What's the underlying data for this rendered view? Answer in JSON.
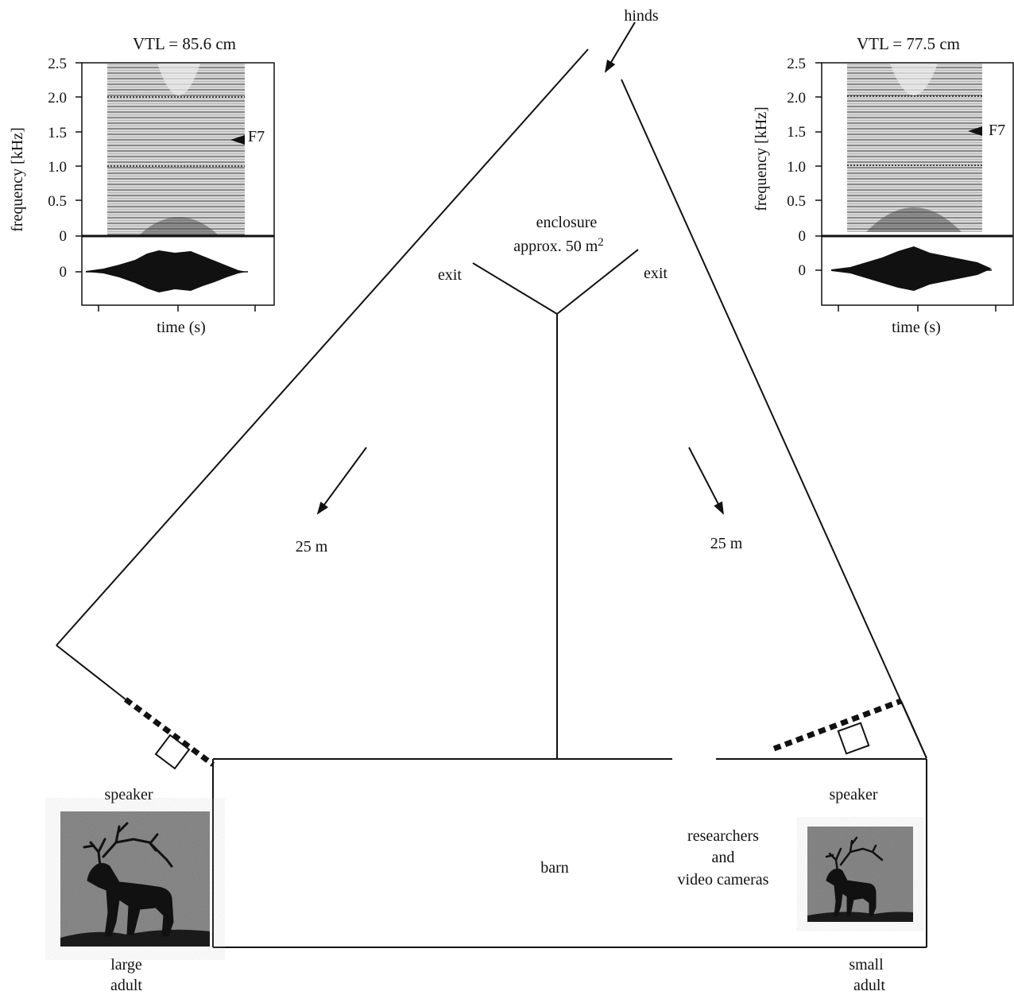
{
  "arrival_label": "hinds",
  "enclosure": {
    "line1": "enclosure",
    "line2": "approx. 50 m",
    "sup": "2"
  },
  "exit_left": "exit",
  "exit_right": "exit",
  "distance_left": "25 m",
  "distance_right": "25 m",
  "barn_label": "barn",
  "researchers": {
    "line1": "researchers",
    "line2": "and",
    "line3": "video cameras"
  },
  "left_speaker": {
    "label": "speaker",
    "caption_line1": "large",
    "caption_line2": "adult"
  },
  "right_speaker": {
    "label": "speaker",
    "caption_line1": "small",
    "caption_line2": "adult"
  },
  "spectrogram_left": {
    "title": "VTL = 85.6 cm",
    "ylabel": "frequency [kHz]",
    "xlabel": "time (s)",
    "yticks": [
      "2.5",
      "2.0",
      "1.5",
      "1.0",
      "0.5",
      "0"
    ],
    "wave_tick": "0",
    "formant_label": "F7"
  },
  "spectrogram_right": {
    "title": "VTL = 77.5 cm",
    "ylabel": "frequency [kHz]",
    "xlabel": "time (s)",
    "yticks": [
      "2.5",
      "2.0",
      "1.5",
      "1.0",
      "0.5",
      "0"
    ],
    "wave_tick": "0",
    "formant_label": "F7"
  }
}
